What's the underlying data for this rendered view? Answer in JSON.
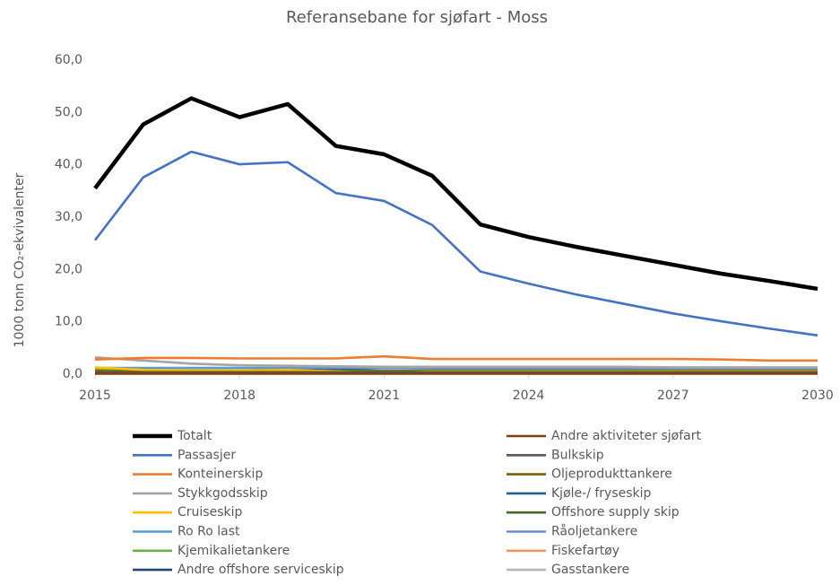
{
  "chart_data": {
    "type": "line",
    "title": "Referansebane for sjøfart - Moss",
    "y_label": "1000 tonn CO₂-ekvivalenter",
    "x": [
      2015,
      2016,
      2017,
      2018,
      2019,
      2020,
      2021,
      2022,
      2023,
      2024,
      2025,
      2026,
      2027,
      2028,
      2029,
      2030
    ],
    "xlim": [
      2015,
      2030
    ],
    "xticks": [
      2015,
      2018,
      2021,
      2024,
      2027,
      2030
    ],
    "ylim": [
      0,
      60
    ],
    "yticks": [
      {
        "value": 0,
        "label": "0,0"
      },
      {
        "value": 10,
        "label": "10,0"
      },
      {
        "value": 20,
        "label": "20,0"
      },
      {
        "value": 30,
        "label": "30,0"
      },
      {
        "value": 40,
        "label": "40,0"
      },
      {
        "value": 50,
        "label": "50,0"
      },
      {
        "value": 60,
        "label": "60,0"
      }
    ],
    "series": [
      {
        "name": "Totalt",
        "color": "#000000",
        "values": [
          35.5,
          47.7,
          52.7,
          49.1,
          51.6,
          43.6,
          42.0,
          37.9,
          28.6,
          26.2,
          24.3,
          22.6,
          20.9,
          19.2,
          17.8,
          16.3
        ]
      },
      {
        "name": "Andre aktiviteter sjøfart",
        "color": "#843c0c",
        "values": [
          0.1,
          0.1,
          0.1,
          0.1,
          0.1,
          0.1,
          0.1,
          0.1,
          0.1,
          0.1,
          0.1,
          0.1,
          0.1,
          0.1,
          0.1,
          0.1
        ]
      },
      {
        "name": "Passasjer",
        "color": "#4472c4",
        "values": [
          25.6,
          37.6,
          42.5,
          40.1,
          40.5,
          34.6,
          33.1,
          28.5,
          19.6,
          17.3,
          15.2,
          13.4,
          11.6,
          10.1,
          8.7,
          7.4
        ]
      },
      {
        "name": "Bulkskip",
        "color": "#595959",
        "values": [
          0.3,
          0.3,
          0.3,
          0.3,
          0.3,
          0.3,
          0.3,
          0.3,
          0.3,
          0.3,
          0.3,
          0.3,
          0.3,
          0.3,
          0.3,
          0.3
        ]
      },
      {
        "name": "Konteinerskip",
        "color": "#ed7d31",
        "values": [
          2.8,
          3.1,
          3.1,
          3.0,
          3.0,
          3.0,
          3.4,
          2.9,
          2.9,
          2.9,
          2.9,
          2.9,
          2.9,
          2.8,
          2.6,
          2.6
        ]
      },
      {
        "name": "Oljeprodukttankere",
        "color": "#7f6000",
        "values": [
          0.5,
          0.4,
          0.4,
          0.4,
          0.4,
          0.4,
          0.4,
          0.4,
          0.4,
          0.4,
          0.4,
          0.4,
          0.4,
          0.4,
          0.4,
          0.4
        ]
      },
      {
        "name": "Stykkgodsskip",
        "color": "#a5a5a5",
        "values": [
          3.2,
          2.6,
          2.0,
          1.7,
          1.6,
          1.5,
          1.4,
          1.4,
          1.4,
          1.4,
          1.4,
          1.4,
          1.3,
          1.3,
          1.3,
          1.3
        ]
      },
      {
        "name": "Kjøle-/ fryseskip",
        "color": "#255e91",
        "values": [
          0.2,
          0.2,
          0.2,
          0.2,
          0.2,
          0.2,
          0.2,
          0.2,
          0.2,
          0.2,
          0.2,
          0.2,
          0.2,
          0.2,
          0.2,
          0.2
        ]
      },
      {
        "name": "Cruiseskip",
        "color": "#ffc000",
        "values": [
          1.3,
          0.8,
          0.7,
          0.7,
          0.8,
          0.5,
          0.2,
          0.5,
          0.5,
          0.5,
          0.5,
          0.5,
          0.5,
          0.5,
          0.5,
          0.5
        ]
      },
      {
        "name": "Offshore supply skip",
        "color": "#43682b",
        "values": [
          0.6,
          0.5,
          0.5,
          0.5,
          0.5,
          0.5,
          0.5,
          0.5,
          0.5,
          0.5,
          0.5,
          0.5,
          0.5,
          0.5,
          0.5,
          0.5
        ]
      },
      {
        "name": "Ro Ro last",
        "color": "#5b9bd5",
        "values": [
          1.2,
          1.2,
          1.2,
          1.2,
          1.2,
          1.2,
          1.2,
          1.2,
          1.2,
          1.2,
          1.2,
          1.2,
          1.2,
          1.2,
          1.2,
          1.2
        ]
      },
      {
        "name": "Råoljetankere",
        "color": "#698ed0",
        "values": [
          0.4,
          0.4,
          0.4,
          0.4,
          0.4,
          0.4,
          0.4,
          0.4,
          0.4,
          0.4,
          0.4,
          0.4,
          0.4,
          0.4,
          0.4,
          0.4
        ]
      },
      {
        "name": "Kjemikalietankere",
        "color": "#70ad47",
        "values": [
          1.0,
          0.8,
          0.7,
          0.6,
          0.6,
          0.6,
          0.6,
          0.6,
          0.6,
          0.6,
          0.6,
          0.6,
          0.6,
          0.6,
          0.6,
          0.6
        ]
      },
      {
        "name": "Fiskefartøy",
        "color": "#f1975a",
        "values": [
          0.2,
          0.2,
          0.2,
          0.2,
          0.2,
          0.2,
          0.2,
          0.2,
          0.2,
          0.2,
          0.2,
          0.2,
          0.2,
          0.2,
          0.2,
          0.2
        ]
      },
      {
        "name": "Andre offshore serviceskip",
        "color": "#264478",
        "values": [
          0.7,
          0.6,
          0.6,
          0.6,
          1.2,
          1.0,
          0.6,
          0.7,
          0.7,
          0.7,
          0.7,
          0.7,
          0.7,
          0.7,
          0.7,
          0.7
        ]
      },
      {
        "name": "Gasstankere",
        "color": "#b7b7b7",
        "values": [
          0.9,
          0.9,
          0.9,
          0.9,
          0.9,
          0.9,
          0.9,
          0.9,
          0.9,
          0.9,
          0.9,
          0.9,
          0.9,
          0.9,
          0.9,
          0.9
        ]
      }
    ]
  }
}
